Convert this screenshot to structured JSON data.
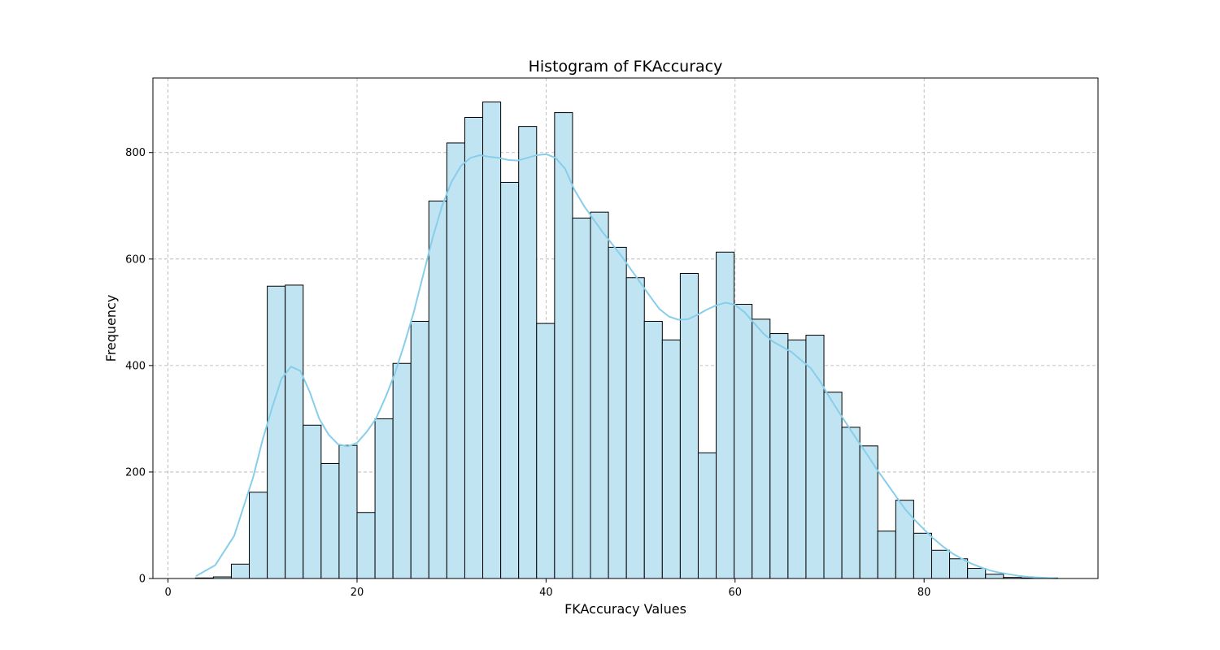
{
  "chart_data": {
    "type": "bar",
    "title": "Histogram of FKAccuracy",
    "xlabel": "FKAccuracy Values",
    "ylabel": "Frequency",
    "xlim": [
      -1.6,
      98.4
    ],
    "ylim": [
      0,
      940
    ],
    "xticks": [
      0,
      20,
      40,
      60,
      80
    ],
    "yticks": [
      0,
      200,
      400,
      600,
      800
    ],
    "grid": true,
    "bar_color": "#c1e4f2",
    "bar_edge_color": "#000000",
    "kde_color": "#87ceeb",
    "bins": {
      "start": 2.9,
      "width": 1.9,
      "counts": [
        1,
        3,
        27,
        162,
        549,
        551,
        288,
        216,
        250,
        124,
        300,
        404,
        483,
        709,
        818,
        866,
        895,
        744,
        849,
        479,
        875,
        677,
        688,
        622,
        565,
        483,
        448,
        573,
        236,
        613,
        515,
        487,
        460,
        448,
        457,
        350,
        284,
        249,
        89,
        147,
        85,
        53,
        37,
        19,
        8,
        2,
        1,
        1
      ]
    },
    "kde": {
      "x": [
        3,
        5,
        7,
        9,
        10,
        11,
        12,
        13,
        14,
        15,
        16,
        17,
        18,
        19,
        20,
        21,
        22,
        23,
        24,
        25,
        26,
        27,
        28,
        29,
        30,
        31,
        32,
        33,
        34,
        35,
        36,
        37,
        38,
        39,
        40,
        41,
        42,
        43,
        44,
        45,
        46,
        47,
        48,
        49,
        50,
        51,
        52,
        53,
        54,
        55,
        56,
        57,
        58,
        59,
        60,
        61,
        62,
        63,
        64,
        65,
        66,
        67,
        68,
        69,
        70,
        71,
        72,
        73,
        74,
        75,
        76,
        77,
        78,
        79,
        80,
        81,
        82,
        83,
        84,
        85,
        86,
        87,
        88,
        89,
        90,
        91,
        92,
        93,
        94
      ],
      "y": [
        5,
        25,
        80,
        190,
        260,
        320,
        375,
        398,
        390,
        350,
        300,
        270,
        252,
        248,
        255,
        275,
        300,
        340,
        385,
        440,
        500,
        570,
        640,
        700,
        745,
        775,
        790,
        795,
        792,
        790,
        786,
        785,
        790,
        795,
        797,
        790,
        770,
        730,
        700,
        675,
        650,
        628,
        605,
        580,
        555,
        530,
        506,
        492,
        486,
        487,
        495,
        505,
        513,
        518,
        514,
        500,
        480,
        460,
        445,
        435,
        425,
        410,
        395,
        370,
        340,
        312,
        285,
        258,
        232,
        205,
        180,
        155,
        130,
        110,
        92,
        75,
        60,
        47,
        37,
        28,
        21,
        15,
        11,
        8,
        5,
        3,
        2,
        1,
        0
      ]
    }
  }
}
